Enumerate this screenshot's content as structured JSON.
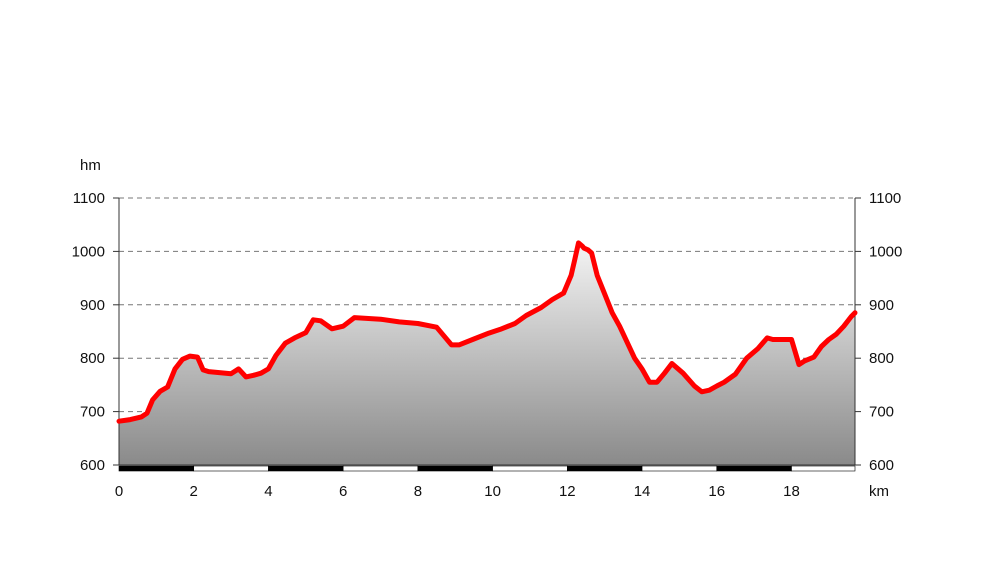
{
  "chart_data": {
    "type": "area",
    "y_unit": "hm",
    "x_unit": "km",
    "ylim": [
      600,
      1100
    ],
    "xlim": [
      0,
      19.7
    ],
    "y_ticks": [
      600,
      700,
      800,
      900,
      1000,
      1100
    ],
    "x_ticks": [
      0,
      2,
      4,
      6,
      8,
      10,
      12,
      14,
      16,
      18
    ],
    "grid": true,
    "line_color": "#ff0000",
    "fill_gradient": [
      "#f4f4f4",
      "#8a8a8a"
    ],
    "series": [
      {
        "x": [
          0,
          0.3,
          0.6,
          0.75,
          0.9,
          1.1,
          1.3,
          1.5,
          1.7,
          1.9,
          2.1,
          2.25,
          2.4,
          3.0,
          3.2,
          3.4,
          3.6,
          3.8,
          4.0,
          4.2,
          4.45,
          4.7,
          5.0,
          5.2,
          5.4,
          5.7,
          6.0,
          6.3,
          7.0,
          7.5,
          8.0,
          8.5,
          8.9,
          9.1,
          9.5,
          9.9,
          10.2,
          10.6,
          10.9,
          11.3,
          11.6,
          11.9,
          12.1,
          12.2,
          12.3,
          12.4,
          12.45,
          12.55,
          12.65,
          12.8,
          13.0,
          13.2,
          13.4,
          13.6,
          13.8,
          14.0,
          14.2,
          14.4,
          14.6,
          14.8,
          15.1,
          15.4,
          15.6,
          15.8,
          16.0,
          16.2,
          16.5,
          16.8,
          17.1,
          17.35,
          17.5,
          18.0,
          18.2,
          18.35,
          18.6,
          18.8,
          19.0,
          19.2,
          19.4,
          19.6,
          19.7
        ],
        "y": [
          682,
          685,
          690,
          697,
          722,
          738,
          746,
          780,
          798,
          804,
          802,
          778,
          775,
          771,
          780,
          765,
          768,
          772,
          780,
          805,
          828,
          838,
          848,
          872,
          870,
          855,
          860,
          876,
          873,
          868,
          865,
          858,
          825,
          825,
          836,
          847,
          854,
          865,
          880,
          895,
          910,
          922,
          955,
          985,
          1016,
          1010,
          1006,
          1003,
          997,
          955,
          920,
          885,
          860,
          830,
          800,
          780,
          755,
          755,
          772,
          790,
          772,
          748,
          737,
          740,
          748,
          755,
          770,
          800,
          818,
          838,
          835,
          835,
          788,
          795,
          802,
          822,
          835,
          845,
          860,
          878,
          885
        ]
      }
    ]
  }
}
